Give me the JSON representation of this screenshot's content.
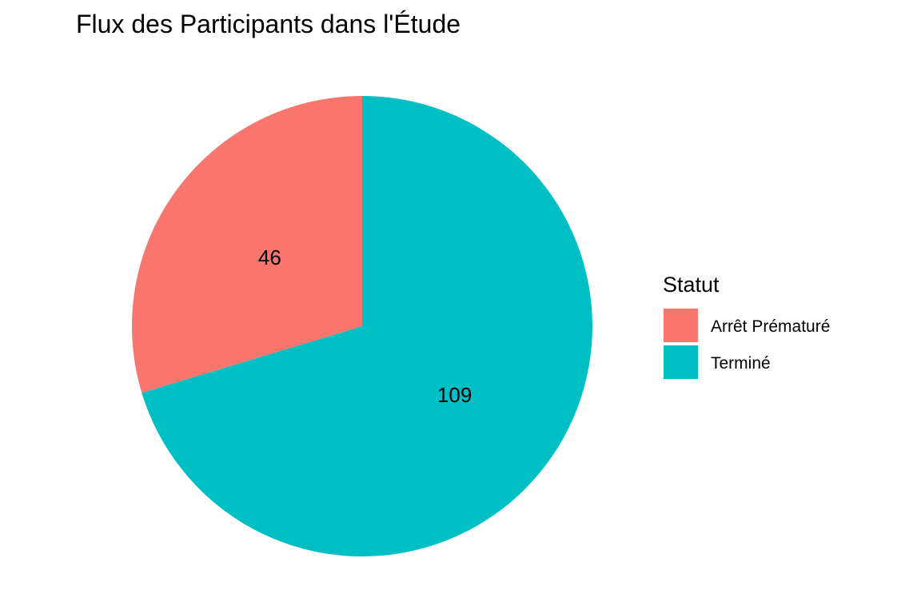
{
  "chart_data": {
    "type": "pie",
    "title": "Flux des Participants dans l'Étude",
    "legend": {
      "title": "Statut",
      "placement": "right"
    },
    "slices": [
      {
        "label": "Arrêt Prématuré",
        "value": 46,
        "display": "46",
        "color": "#F8766D"
      },
      {
        "label": "Terminé",
        "value": 109,
        "display": "109",
        "color": "#00BFC4"
      }
    ],
    "start_angle": "12 o'clock",
    "direction": "counterclockwise"
  }
}
